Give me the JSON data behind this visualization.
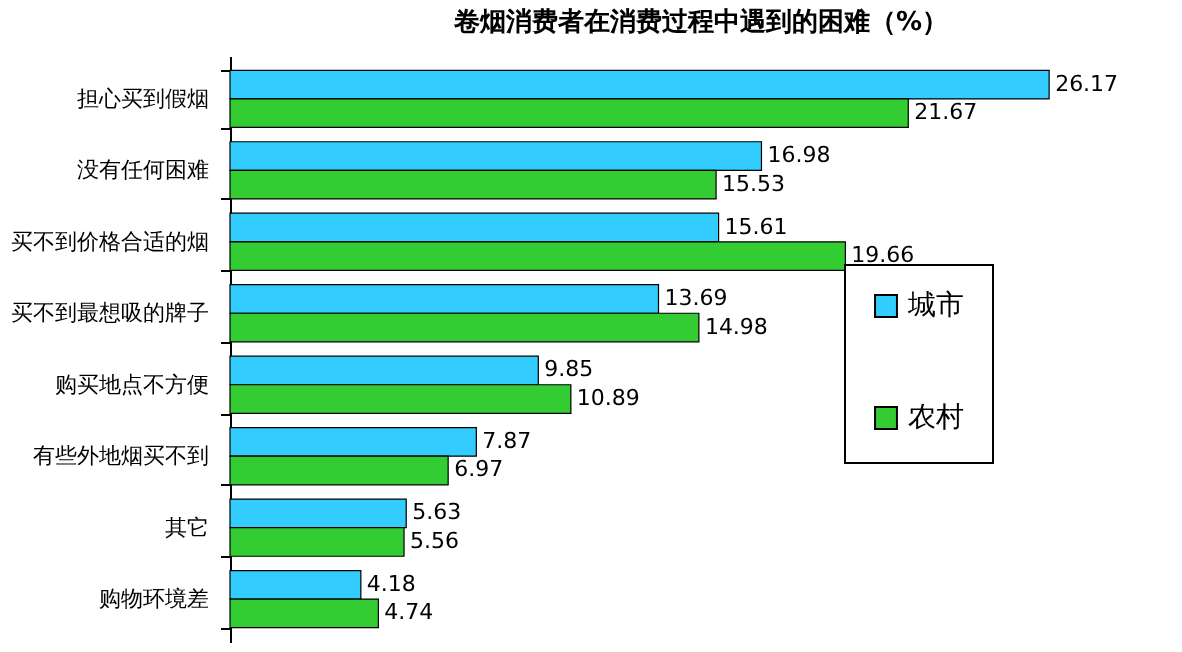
{
  "chart_data": {
    "type": "bar",
    "orientation": "horizontal",
    "title": "卷烟消费者在消费过程中遇到的困难（%）",
    "categories": [
      "担心买到假烟",
      "没有任何困难",
      "买不到价格合适的烟",
      "买不到最想吸的牌子",
      "购买地点不方便",
      "有些外地烟买不到",
      "其它",
      "购物环境差"
    ],
    "series": [
      {
        "name": "城市",
        "color": "#33ccff",
        "values": [
          26.17,
          16.98,
          15.61,
          13.69,
          9.85,
          7.87,
          5.63,
          4.18
        ]
      },
      {
        "name": "农村",
        "color": "#33cc33",
        "values": [
          21.67,
          15.53,
          19.66,
          14.98,
          10.89,
          6.97,
          5.56,
          4.74
        ]
      }
    ],
    "data_labels": true,
    "legend": "bottom right",
    "grid": false
  }
}
